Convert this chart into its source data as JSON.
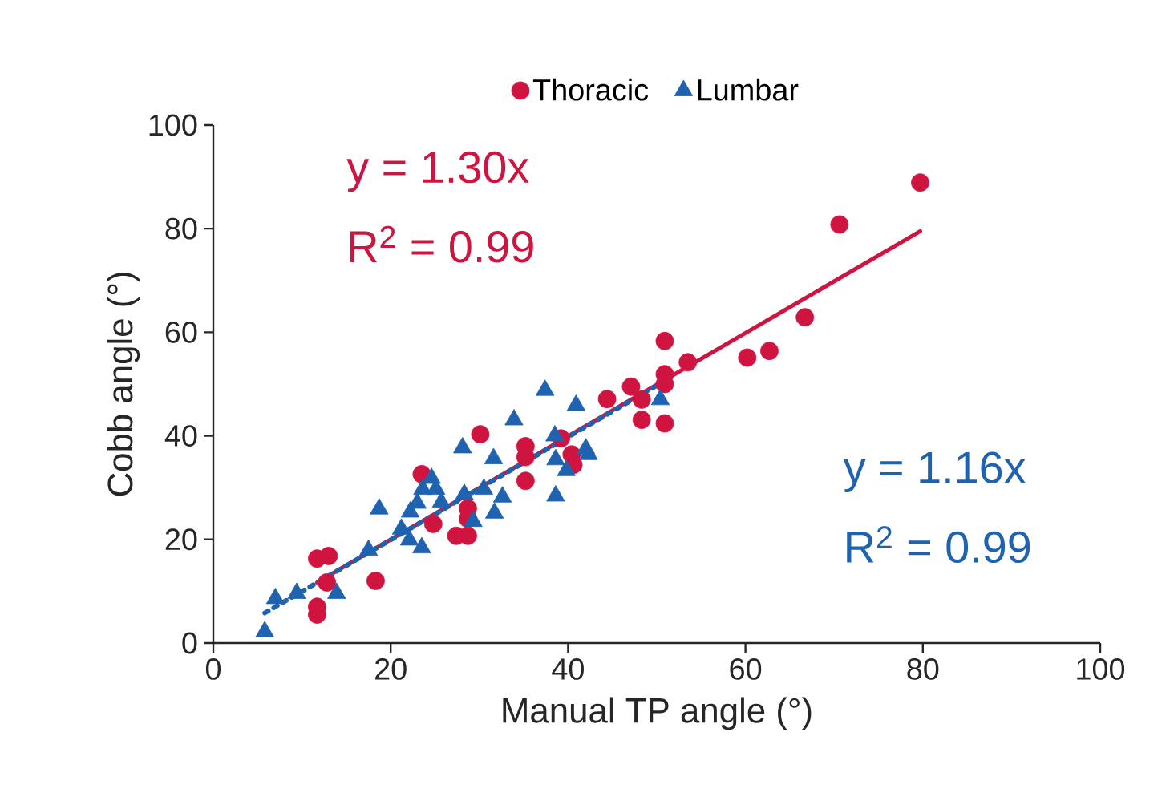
{
  "chart_data": {
    "type": "scatter",
    "xlabel": "Manual TP angle (°)",
    "ylabel": "Cobb angle (°)",
    "xlim": [
      0,
      100
    ],
    "ylim": [
      0,
      100
    ],
    "xticks": [
      0,
      20,
      40,
      60,
      80,
      100
    ],
    "yticks": [
      0,
      20,
      40,
      60,
      80,
      100
    ],
    "legend": "top",
    "annotations": [
      "y = 1.30x",
      "R$^{2}$ = 0.99",
      "y = 1.16x",
      "R$^{2}$ = 0.99"
    ],
    "series": [
      {
        "name": "Thoracic",
        "color": "#d01440",
        "marker": "circle",
        "x": [
          11.7,
          13.0,
          12.8,
          11.7,
          11.7,
          18.3,
          23.5,
          24.8,
          27.4,
          28.7,
          28.7,
          28.7,
          30.1,
          35.2,
          35.2,
          35.2,
          39.2,
          40.4,
          40.6,
          44.4,
          47.1,
          48.3,
          48.3,
          50.9,
          50.9,
          50.9,
          50.9,
          53.5,
          60.2,
          62.7,
          66.7,
          70.6,
          79.7
        ],
        "values": [
          16.3,
          16.8,
          11.7,
          7.0,
          5.5,
          12.0,
          32.6,
          23.0,
          20.7,
          20.7,
          26.0,
          24.0,
          40.3,
          38.0,
          35.9,
          31.3,
          39.5,
          36.4,
          34.4,
          47.1,
          49.5,
          47.0,
          43.1,
          58.3,
          51.9,
          50.0,
          42.4,
          54.2,
          55.1,
          56.4,
          62.9,
          80.8,
          88.9
        ]
      },
      {
        "name": "Lumbar",
        "color": "#1f63b0",
        "marker": "triangle",
        "x": [
          5.8,
          7.0,
          9.4,
          13.9,
          17.5,
          18.7,
          21.2,
          22.1,
          22.2,
          23.0,
          23.5,
          23.6,
          24.6,
          25.1,
          25.7,
          28.1,
          28.3,
          29.3,
          30.5,
          31.6,
          31.7,
          32.6,
          33.9,
          37.4,
          38.5,
          38.6,
          38.6,
          39.8,
          40.9,
          42.0,
          42.3,
          50.4
        ],
        "values": [
          2.2,
          8.6,
          9.6,
          9.6,
          17.9,
          25.9,
          22.0,
          19.9,
          25.3,
          27.0,
          18.4,
          29.7,
          31.8,
          29.7,
          27.2,
          37.7,
          28.7,
          23.5,
          29.7,
          35.6,
          25.1,
          28.2,
          43.1,
          48.8,
          40.0,
          35.4,
          28.4,
          33.3,
          45.9,
          37.5,
          36.4,
          47.0
        ]
      },
      {
        "type": "line",
        "color": "#d01440",
        "line_style": "solid",
        "x": [
          11.7,
          79.7
        ],
        "values": [
          11.7,
          79.5
        ]
      },
      {
        "type": "line",
        "color": "#1f63b0",
        "line_style": "dotted",
        "x": [
          5.8,
          50.1
        ],
        "values": [
          5.8,
          49.8
        ]
      }
    ]
  }
}
